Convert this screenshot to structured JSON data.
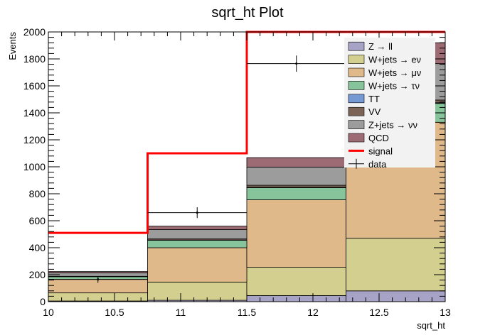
{
  "chart_data": {
    "type": "bar",
    "title": "sqrt_ht Plot",
    "xlabel": "sqrt_ht",
    "ylabel": "Events",
    "xlim": [
      10,
      13
    ],
    "ylim": [
      0,
      2000
    ],
    "bin_edges": [
      10,
      10.75,
      11.5,
      12.25,
      13
    ],
    "x_ticks": [
      "10",
      "10.5",
      "11",
      "11.5",
      "12",
      "12.5",
      "13"
    ],
    "y_ticks": [
      "0",
      "200",
      "400",
      "600",
      "800",
      "1000",
      "1200",
      "1400",
      "1600",
      "1800",
      "2000"
    ],
    "stacked_series": [
      {
        "name": "Z → ll",
        "color": "#a7a3c6",
        "values": [
          5,
          10,
          45,
          80
        ]
      },
      {
        "name": "W+jets → eν",
        "color": "#d3cf8f",
        "values": [
          60,
          135,
          210,
          390
        ]
      },
      {
        "name": "W+jets → μν",
        "color": "#e0b98a",
        "values": [
          100,
          255,
          500,
          860
        ]
      },
      {
        "name": "W+jets → τν",
        "color": "#87c39b",
        "values": [
          20,
          55,
          90,
          140
        ]
      },
      {
        "name": "TT",
        "color": "#7499d3",
        "values": [
          0,
          2,
          3,
          5
        ]
      },
      {
        "name": "VV",
        "color": "#7b6355",
        "values": [
          3,
          8,
          15,
          20
        ]
      },
      {
        "name": "Z+jets → νν",
        "color": "#9c9c9c",
        "values": [
          25,
          70,
          135,
          270
        ]
      },
      {
        "name": "QCD",
        "color": "#9d6b73",
        "values": [
          10,
          25,
          70,
          155
        ]
      }
    ],
    "signal": {
      "name": "signal",
      "color": "#ff0000",
      "values": [
        510,
        1100,
        2500,
        2500
      ]
    },
    "data_points": {
      "name": "data",
      "x": [
        10.375,
        11.125,
        11.875
      ],
      "y": [
        165,
        660,
        1765
      ],
      "err": [
        25,
        40,
        60
      ]
    }
  }
}
